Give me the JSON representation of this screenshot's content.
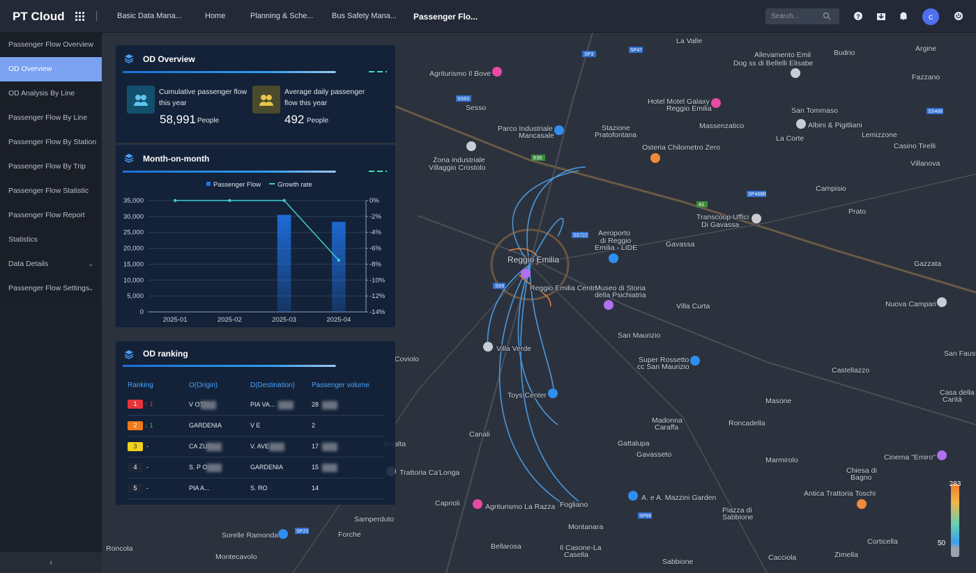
{
  "header": {
    "logo": "PT Cloud",
    "nav": [
      "Basic Data Mana...",
      "Home",
      "Planning & Sche...",
      "Bus Safety Mana...",
      "Passenger Flo..."
    ],
    "search": "Search...",
    "avatar": "c"
  },
  "sidebar": {
    "items": [
      "Passenger Flow Overview",
      "OD Overview",
      "OD Analysis By Line",
      "Passenger Flow By Line",
      "Passenger Flow By Station",
      "Passenger Flow By Trip",
      "Passenger Flow Statistic",
      "Passenger Flow Report",
      "Statistics",
      "Data Details",
      "Passenger Flow Settings"
    ]
  },
  "od_overview": {
    "title": "OD Overview",
    "stats": [
      {
        "label": "Cumulative passenger flow this year",
        "value": "58,991",
        "unit": "People"
      },
      {
        "label": "Average daily passenger flow this year",
        "value": "492",
        "unit": "People"
      }
    ]
  },
  "chart_data": {
    "type": "combo",
    "title": "Month-on-month",
    "categories": [
      "2025-01",
      "2025-02",
      "2025-03",
      "2025-04"
    ],
    "series": [
      {
        "name": "Passenger Flow",
        "type": "bar",
        "color": "#1f73e6",
        "values": [
          null,
          null,
          30500,
          28300
        ]
      },
      {
        "name": "Growth rate",
        "type": "line",
        "axis": "y2",
        "color": "#3ccfcf",
        "values": [
          0,
          0,
          0,
          -7.5
        ]
      }
    ],
    "ylim": [
      0,
      35000
    ],
    "yticks": [
      0,
      {
        "value": 5000,
        "label": "5,000"
      },
      {
        "value": 10000,
        "label": "10,000"
      },
      {
        "value": 15000,
        "label": "15,000"
      },
      {
        "value": 20000,
        "label": "20,000"
      },
      {
        "value": 25000,
        "label": "25,000"
      },
      {
        "value": 30000,
        "label": "30,000"
      },
      {
        "value": 35000,
        "label": "35,000"
      }
    ],
    "y2lim": [
      -14,
      0
    ],
    "y2ticks": [
      {
        "value": 0,
        "label": "0%"
      },
      {
        "value": -2,
        "label": "-2%"
      },
      {
        "value": -4,
        "label": "-4%"
      },
      {
        "value": -6,
        "label": "-6%"
      },
      {
        "value": -8,
        "label": "-8%"
      },
      {
        "value": -10,
        "label": "-10%"
      },
      {
        "value": -12,
        "label": "-12%"
      },
      {
        "value": -14,
        "label": "-14%"
      }
    ],
    "grid": true
  },
  "od_ranking": {
    "title": "OD ranking",
    "columns": [
      "Ranking",
      "O(Origin)",
      "D(Destination)",
      "Passenger volume"
    ],
    "rows": [
      [
        "1",
        "1",
        "V OTTI",
        "PIA VA...",
        "28"
      ],
      [
        "2",
        "1",
        "GARDENIA",
        "V E",
        "2"
      ],
      [
        "3",
        "-",
        "CA ZUC...",
        "V. AVE",
        "17"
      ],
      [
        "4",
        "-",
        "S. P O -...",
        "GARDENIA",
        "15"
      ],
      [
        "5",
        "-",
        "PIA A...",
        "S. RO",
        "14"
      ]
    ]
  },
  "map": {
    "places": [
      "La Valle",
      "Allevamento Emil",
      "Dog ss di Bellelli Elisabe",
      "Budrio",
      "Argine",
      "Agriturismo Il Bove",
      "Fazzano",
      "Sesso",
      "Hotel Motel Galaxy",
      "Reggio Emilia",
      "San Tommaso",
      "Albini & Pigitliani",
      "Massenzatico",
      "Parco Industriale",
      "Mancasale",
      "Stazione",
      "Pratofontana",
      "La Corte",
      "Lemizzone",
      "Casino Tirelli",
      "Osteria Chilometro Zero",
      "Zona industriale",
      "Villaggio Crostolo",
      "Villanova",
      "Campisio",
      "Prato",
      "Transcoop Uffici",
      "Di Gavassa",
      "Aeroporto",
      "di Reggio",
      "Emilia - LIDE",
      "Gavassa",
      "Gazzata",
      "Reggio Emilia",
      "Reggio Emilia Centro",
      "Museo di Storia",
      "della Psichiatria",
      "Villa Curta",
      "Nuova Campari",
      "San Maurizio",
      "Villa Verde",
      "Coviolo",
      "Super Rossetto",
      "cc San Maurizio",
      "San Fausto",
      "Castellazzo",
      "Toys Center",
      "Masone",
      "Casa della",
      "Carità",
      "Canali",
      "Madonna",
      "Caraffa",
      "Roncadella",
      "Gattalupa",
      "Gavasseto",
      "Marmirolo",
      "Cinema \"Emiro\"",
      "Chiesa di",
      "Bagno",
      "Rivalta",
      "Trattoria Ca'Longa",
      "Caprioli",
      "Agriturismo La Razza",
      "Fogliano",
      "A. e A. Mazzini Garden",
      "Antica Trattoria Toschi",
      "Piazza di",
      "Sabbione",
      "Montanara",
      "Samperduto",
      "Sorelle Ramonda",
      "Forche",
      "Roncola",
      "Montecavolo",
      "Bellarosa",
      "Il Casone-La",
      "Casella",
      "Corticella",
      "Cacciola",
      "Zimella",
      "Sabbione"
    ],
    "roads": [
      "SP3",
      "SP47",
      "SS63",
      "E35",
      "A1",
      "SS9",
      "SS722",
      "SP66",
      "SP23",
      "SS468",
      "SP468R"
    ]
  },
  "color_scale": {
    "max": 283,
    "min": 50
  }
}
